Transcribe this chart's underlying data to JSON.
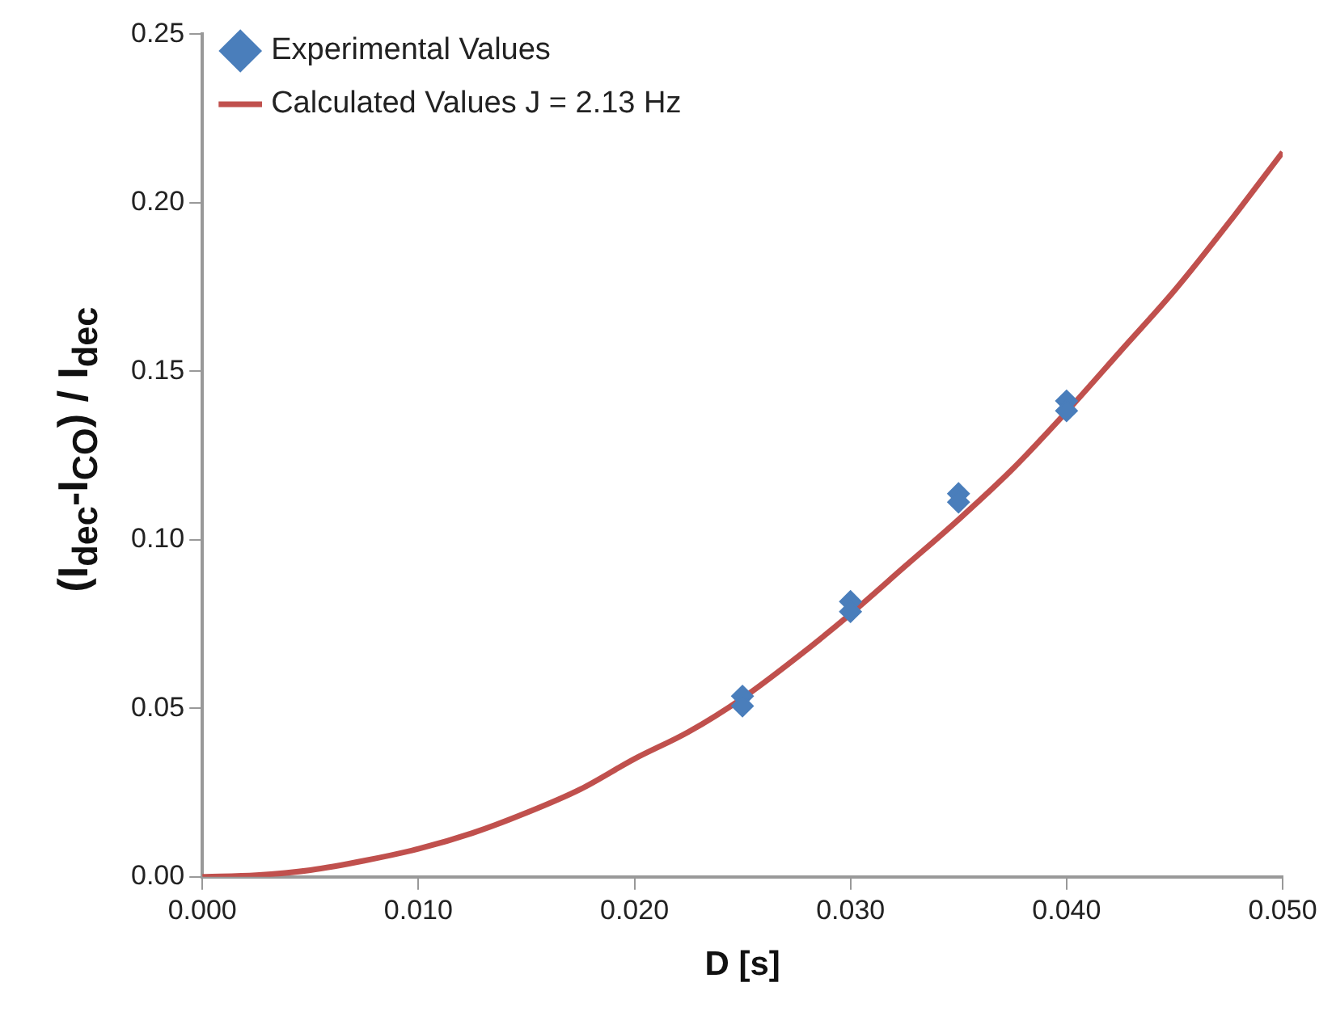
{
  "chart_data": {
    "type": "scatter",
    "xlabel": "D [s]",
    "ylabel": "(I$_{dec}$-I$_{CO}$) / I$_{dec}$",
    "xlim": [
      0,
      0.05
    ],
    "xticks": [
      {
        "value": 0,
        "label": "0.000"
      },
      {
        "value": 0.01,
        "label": "0.010"
      },
      {
        "value": 0.02,
        "label": "0.020"
      },
      {
        "value": 0.03,
        "label": "0.030"
      },
      {
        "value": 0.04,
        "label": "0.040"
      },
      {
        "value": 0.05,
        "label": "0.050"
      }
    ],
    "ylim": [
      0,
      0.25
    ],
    "yticks": [
      {
        "value": 0,
        "label": "0.00"
      },
      {
        "value": 0.05,
        "label": "0.05"
      },
      {
        "value": 0.1,
        "label": "0.10"
      },
      {
        "value": 0.15,
        "label": "0.15"
      },
      {
        "value": 0.2,
        "label": "0.20"
      },
      {
        "value": 0.25,
        "label": "0.25"
      }
    ],
    "grid": false,
    "legend": "top left",
    "series": [
      {
        "name": "Experimental Values",
        "type": "scatter",
        "marker": "diamond",
        "color": "#4a7ebb",
        "x": [
          0.025,
          0.025,
          0.03,
          0.03,
          0.035,
          0.035,
          0.04,
          0.04
        ],
        "values": [
          0.0536,
          0.0507,
          0.0817,
          0.0787,
          0.1137,
          0.1112,
          0.1412,
          0.1383
        ]
      },
      {
        "name": "Calculated Values J = 2.13 Hz",
        "type": "line",
        "marker": "none",
        "color": "#c0504d",
        "x": [
          0,
          0.0025,
          0.005,
          0.0075,
          0.01,
          0.0125,
          0.015,
          0.0175,
          0.02,
          0.0225,
          0.025,
          0.0275,
          0.03,
          0.0325,
          0.035,
          0.0375,
          0.04,
          0.0425,
          0.045,
          0.0475,
          0.05
        ],
        "values": [
          0,
          0.0005,
          0.002,
          0.0048,
          0.0083,
          0.013,
          0.019,
          0.026,
          0.035,
          0.043,
          0.053,
          0.065,
          0.078,
          0.092,
          0.106,
          0.121,
          0.138,
          0.156,
          0.174,
          0.194,
          0.215
        ]
      }
    ]
  }
}
